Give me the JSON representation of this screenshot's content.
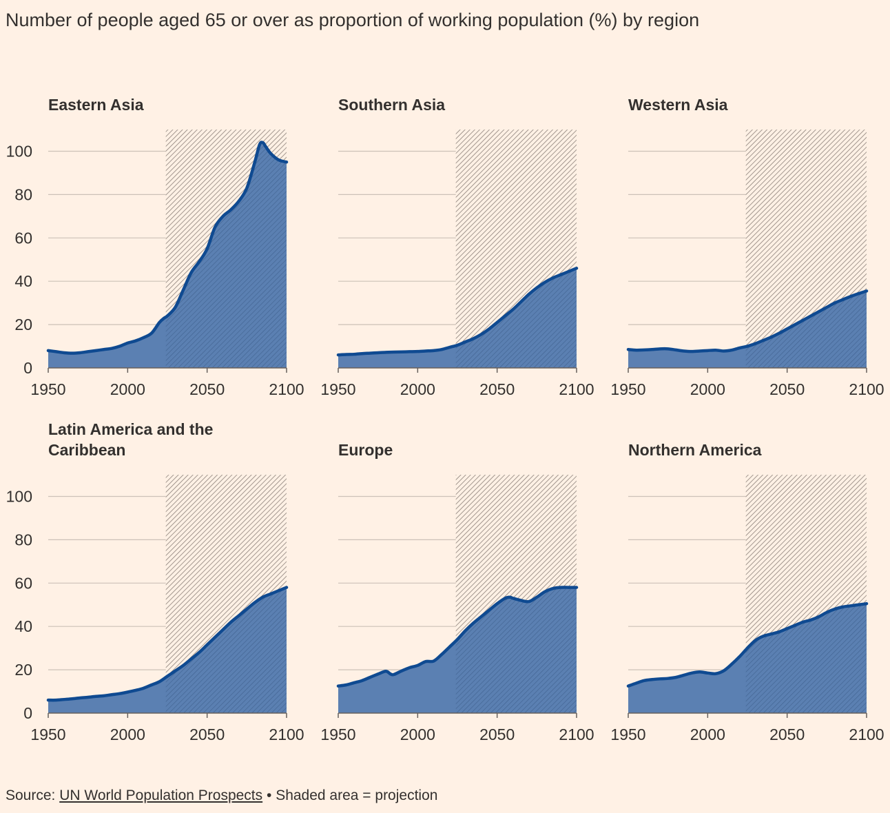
{
  "title": "Number of people aged 65 or over as proportion of working population (%) by region",
  "footer": {
    "source_label": "Source:",
    "source_link": "UN World Population Prospects",
    "separator": "•",
    "note": "Shaded area = projection"
  },
  "colors": {
    "line": "#0f4a91",
    "area": "#5b80b2",
    "background": "#fff1e5",
    "hatch": "#8a817a"
  },
  "chart_data": [
    {
      "type": "area",
      "title": "Eastern Asia",
      "x": [
        1950,
        1955,
        1960,
        1965,
        1970,
        1975,
        1980,
        1985,
        1990,
        1995,
        2000,
        2005,
        2010,
        2015,
        2020,
        2023,
        2025,
        2030,
        2035,
        2040,
        2045,
        2050,
        2055,
        2060,
        2065,
        2070,
        2075,
        2080,
        2083,
        2085,
        2087,
        2090,
        2095,
        2100
      ],
      "values": [
        8,
        7.5,
        7,
        6.8,
        7,
        7.5,
        8,
        8.5,
        9,
        10,
        11.5,
        12.5,
        14,
        16,
        21,
        23,
        24,
        28,
        36,
        44,
        49,
        55,
        65,
        70,
        73,
        77,
        83,
        95,
        103,
        104,
        102,
        99,
        96,
        95
      ],
      "projection_start": 2024,
      "xlim": [
        1950,
        2100
      ],
      "ylim": [
        0,
        110
      ],
      "xticks": [
        1950,
        2000,
        2050,
        2100
      ],
      "yticks": [
        0,
        20,
        40,
        60,
        80,
        100
      ]
    },
    {
      "type": "area",
      "title": "Southern Asia",
      "x": [
        1950,
        1955,
        1960,
        1965,
        1970,
        1975,
        1980,
        1985,
        1990,
        1995,
        2000,
        2005,
        2010,
        2015,
        2020,
        2025,
        2030,
        2035,
        2040,
        2045,
        2050,
        2055,
        2060,
        2065,
        2070,
        2075,
        2080,
        2085,
        2090,
        2095,
        2100
      ],
      "values": [
        6,
        6.2,
        6.3,
        6.6,
        6.8,
        7,
        7.2,
        7.3,
        7.4,
        7.5,
        7.6,
        7.8,
        8,
        8.5,
        9.5,
        10.5,
        12,
        13.5,
        15.5,
        18,
        21,
        24,
        27,
        30.5,
        34,
        37,
        39.5,
        41.5,
        43,
        44.5,
        46
      ],
      "projection_start": 2024,
      "xlim": [
        1950,
        2100
      ],
      "ylim": [
        0,
        110
      ],
      "xticks": [
        1950,
        2000,
        2050,
        2100
      ],
      "yticks": [
        0,
        20,
        40,
        60,
        80,
        100
      ]
    },
    {
      "type": "area",
      "title": "Western Asia",
      "x": [
        1950,
        1955,
        1960,
        1965,
        1970,
        1975,
        1980,
        1985,
        1990,
        1995,
        2000,
        2005,
        2010,
        2015,
        2020,
        2025,
        2030,
        2035,
        2040,
        2045,
        2050,
        2055,
        2060,
        2065,
        2070,
        2075,
        2080,
        2085,
        2090,
        2095,
        2100
      ],
      "values": [
        8.5,
        8.2,
        8.3,
        8.5,
        8.8,
        8.8,
        8.3,
        7.8,
        7.6,
        7.8,
        8,
        8.2,
        7.8,
        8.2,
        9.2,
        10,
        11.2,
        12.7,
        14.2,
        16,
        18,
        20,
        22,
        24,
        26,
        28,
        30,
        31.5,
        33,
        34.3,
        35.5
      ],
      "projection_start": 2024,
      "xlim": [
        1950,
        2100
      ],
      "ylim": [
        0,
        110
      ],
      "xticks": [
        1950,
        2000,
        2050,
        2100
      ],
      "yticks": [
        0,
        20,
        40,
        60,
        80,
        100
      ]
    },
    {
      "type": "area",
      "title": "Latin America and the Caribbean",
      "x": [
        1950,
        1955,
        1960,
        1965,
        1970,
        1975,
        1980,
        1985,
        1990,
        1995,
        2000,
        2005,
        2010,
        2015,
        2020,
        2025,
        2030,
        2035,
        2040,
        2045,
        2050,
        2055,
        2060,
        2065,
        2070,
        2075,
        2080,
        2085,
        2090,
        2095,
        2100
      ],
      "values": [
        6,
        6,
        6.3,
        6.6,
        7,
        7.3,
        7.7,
        8,
        8.5,
        9,
        9.7,
        10.5,
        11.5,
        13,
        14.5,
        17,
        19.5,
        22,
        25,
        28,
        31.5,
        35,
        38.5,
        42,
        45,
        48,
        51,
        53.5,
        55,
        56.5,
        58
      ],
      "projection_start": 2024,
      "xlim": [
        1950,
        2100
      ],
      "ylim": [
        0,
        110
      ],
      "xticks": [
        1950,
        2000,
        2050,
        2100
      ],
      "yticks": [
        0,
        20,
        40,
        60,
        80,
        100
      ]
    },
    {
      "type": "area",
      "title": "Europe",
      "x": [
        1950,
        1955,
        1960,
        1965,
        1970,
        1975,
        1980,
        1983,
        1985,
        1990,
        1995,
        2000,
        2005,
        2010,
        2015,
        2020,
        2025,
        2030,
        2035,
        2040,
        2045,
        2050,
        2055,
        2058,
        2060,
        2065,
        2070,
        2075,
        2080,
        2085,
        2090,
        2095,
        2100
      ],
      "values": [
        12.5,
        13,
        14,
        15,
        16.5,
        18,
        19.3,
        18,
        17.8,
        19.5,
        21,
        22,
        23.8,
        24,
        27,
        30.5,
        34,
        38,
        41.5,
        44.5,
        47.5,
        50.5,
        53,
        53.5,
        53,
        52,
        51.5,
        53.5,
        56,
        57.5,
        58,
        58,
        58
      ],
      "projection_start": 2024,
      "xlim": [
        1950,
        2100
      ],
      "ylim": [
        0,
        110
      ],
      "xticks": [
        1950,
        2000,
        2050,
        2100
      ],
      "yticks": [
        0,
        20,
        40,
        60,
        80,
        100
      ]
    },
    {
      "type": "area",
      "title": "Northern America",
      "x": [
        1950,
        1955,
        1960,
        1965,
        1970,
        1975,
        1980,
        1985,
        1990,
        1995,
        2000,
        2005,
        2010,
        2015,
        2020,
        2025,
        2030,
        2035,
        2040,
        2045,
        2050,
        2055,
        2060,
        2065,
        2070,
        2075,
        2080,
        2085,
        2090,
        2095,
        2100
      ],
      "values": [
        12.5,
        13.8,
        15,
        15.5,
        15.8,
        16,
        16.5,
        17.5,
        18.5,
        19,
        18.5,
        18.2,
        19.5,
        22.5,
        26,
        30,
        33.5,
        35.5,
        36.5,
        37.5,
        39,
        40.5,
        42,
        43,
        44.5,
        46.5,
        48,
        49,
        49.5,
        50,
        50.5
      ],
      "projection_start": 2024,
      "xlim": [
        1950,
        2100
      ],
      "ylim": [
        0,
        110
      ],
      "xticks": [
        1950,
        2000,
        2050,
        2100
      ],
      "yticks": [
        0,
        20,
        40,
        60,
        80,
        100
      ]
    }
  ]
}
